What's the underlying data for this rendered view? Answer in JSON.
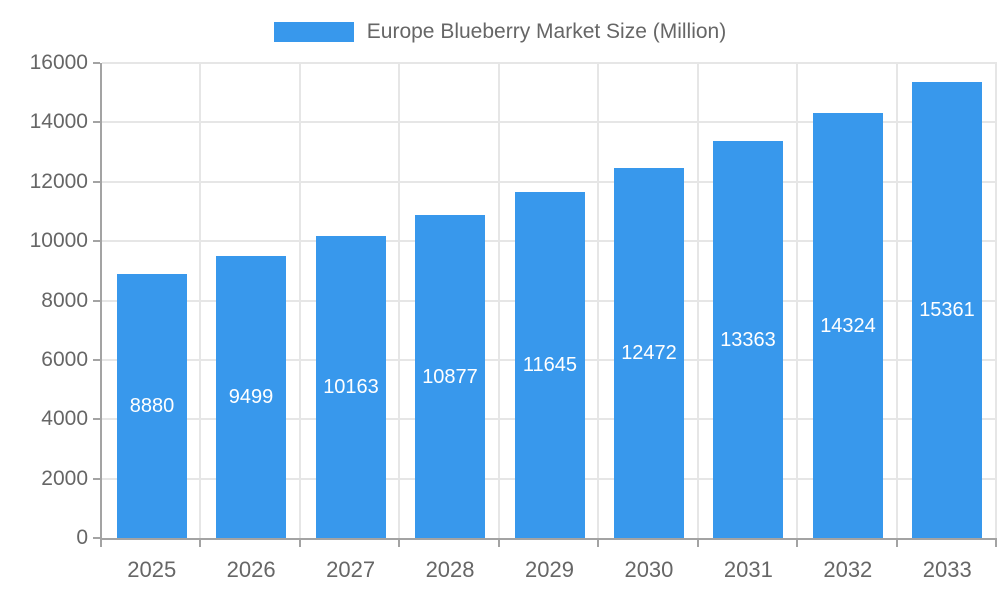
{
  "legend": {
    "label": "Europe Blueberry Market Size (Million)"
  },
  "colors": {
    "bar": "#3898ec",
    "axis": "#a3a3a3",
    "grid": "#e6e6e6",
    "tick": "#a3a3a3",
    "axis_label": "#666666",
    "bar_label": "#ffffff",
    "background": "#ffffff"
  },
  "chart_data": {
    "type": "bar",
    "title": "Europe Blueberry Market Size (Million)",
    "categories": [
      "2025",
      "2026",
      "2027",
      "2028",
      "2029",
      "2030",
      "2031",
      "2032",
      "2033"
    ],
    "values": [
      8880,
      9499,
      10163,
      10877,
      11645,
      12472,
      13363,
      14324,
      15361
    ],
    "xlabel": "",
    "ylabel": "",
    "ylim": [
      0,
      16000
    ],
    "ytick_step": 2000,
    "yticks": [
      0,
      2000,
      4000,
      6000,
      8000,
      10000,
      12000,
      14000,
      16000
    ],
    "grid": true,
    "legend_position": "top-center",
    "bar_labels_visible": true,
    "bar_label_position": "center-inside"
  }
}
